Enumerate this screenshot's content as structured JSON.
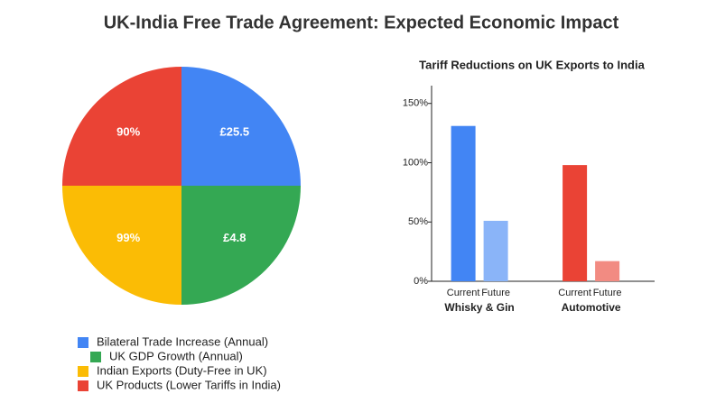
{
  "title": "UK-India Free Trade Agreement: Expected Economic Impact",
  "chart_data": [
    {
      "type": "pie",
      "categories": [
        "Bilateral Trade Increase (Annual)",
        "UK GDP Growth (Annual)",
        "Indian Exports (Duty-Free in UK)",
        "UK Products (Lower Tariffs in India)"
      ],
      "values": [
        25,
        25,
        25,
        25
      ],
      "slice_labels": [
        "£25.5",
        "£4.8",
        "99%",
        "90%"
      ],
      "colors": [
        "#4285f4",
        "#34a853",
        "#fbbc05",
        "#ea4335"
      ]
    },
    {
      "type": "bar",
      "title": "Tariff Reductions on UK Exports to India",
      "categories": [
        "Whisky & Gin",
        "Automotive"
      ],
      "series": [
        {
          "name": "Current",
          "colors": [
            "#4285f4",
            "#ea4335"
          ],
          "values": [
            131,
            98
          ]
        },
        {
          "name": "Future",
          "colors": [
            "#8ab4f8",
            "#f28b82"
          ],
          "values": [
            51,
            17
          ]
        }
      ],
      "ylim": [
        0,
        165
      ],
      "yticks": [
        {
          "value": 0,
          "label": "0%"
        },
        {
          "value": 50,
          "label": "50%"
        },
        {
          "value": 100,
          "label": "100%"
        },
        {
          "value": 150,
          "label": "150%"
        }
      ]
    }
  ]
}
